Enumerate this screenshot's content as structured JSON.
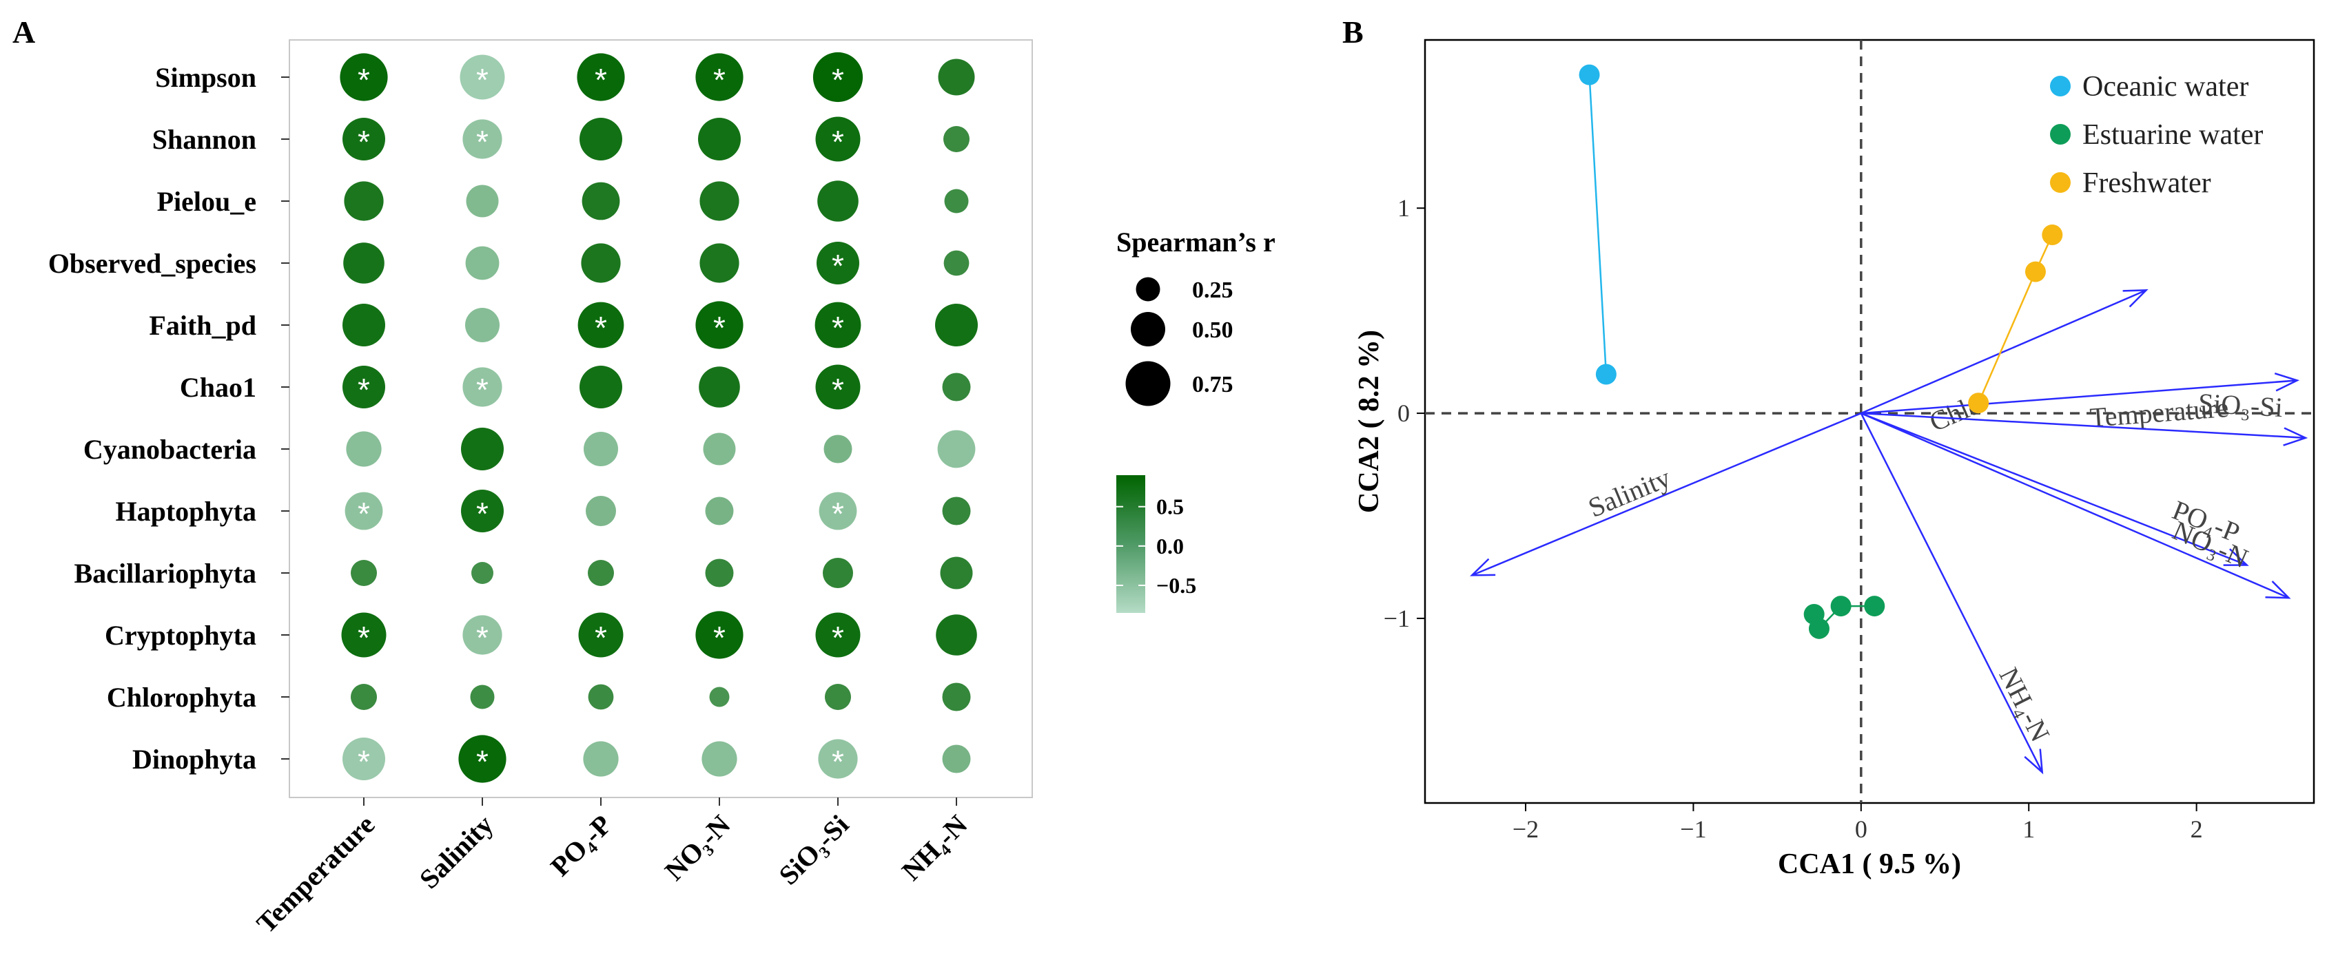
{
  "chart_data": [
    {
      "type": "heatmap",
      "panel_label": "A",
      "rows": [
        "Simpson",
        "Shannon",
        "Pielou_e",
        "Observed_species",
        "Faith_pd",
        "Chao1",
        "Cyanobacteria",
        "Haptophyta",
        "Bacillariophyta",
        "Cryptophyta",
        "Chlorophyta",
        "Dinophyta"
      ],
      "columns": [
        "Temperature",
        "Salinity",
        "PO₄-P",
        "NO₃-N",
        "SiO₃-Si",
        "NH₄-N"
      ],
      "r": [
        [
          0.82,
          -0.75,
          0.82,
          0.82,
          0.87,
          0.55
        ],
        [
          0.7,
          -0.62,
          0.7,
          0.7,
          0.75,
          0.3
        ],
        [
          0.62,
          -0.45,
          0.58,
          0.62,
          0.66,
          0.25
        ],
        [
          0.66,
          -0.48,
          0.62,
          0.62,
          0.7,
          0.28
        ],
        [
          0.7,
          -0.5,
          0.78,
          0.82,
          0.78,
          0.7
        ],
        [
          0.7,
          -0.62,
          0.7,
          0.66,
          0.75,
          0.35
        ],
        [
          -0.52,
          0.7,
          -0.5,
          -0.45,
          -0.35,
          -0.58
        ],
        [
          -0.58,
          0.7,
          -0.4,
          -0.35,
          -0.58,
          0.35
        ],
        [
          0.3,
          0.2,
          0.3,
          0.35,
          0.4,
          0.45
        ],
        [
          0.75,
          -0.62,
          0.75,
          0.82,
          0.75,
          0.66
        ],
        [
          0.3,
          0.25,
          0.28,
          0.15,
          0.3,
          0.35
        ],
        [
          -0.7,
          0.82,
          -0.52,
          -0.52,
          -0.62,
          -0.35
        ]
      ],
      "significant": [
        [
          true,
          true,
          true,
          true,
          true,
          false
        ],
        [
          true,
          true,
          false,
          false,
          true,
          false
        ],
        [
          false,
          false,
          false,
          false,
          false,
          false
        ],
        [
          false,
          false,
          false,
          false,
          true,
          false
        ],
        [
          false,
          false,
          true,
          true,
          true,
          false
        ],
        [
          true,
          true,
          false,
          false,
          true,
          false
        ],
        [
          false,
          false,
          false,
          false,
          false,
          false
        ],
        [
          true,
          true,
          false,
          false,
          true,
          false
        ],
        [
          false,
          false,
          false,
          false,
          false,
          false
        ],
        [
          true,
          true,
          true,
          true,
          true,
          false
        ],
        [
          false,
          false,
          false,
          false,
          false,
          false
        ],
        [
          true,
          true,
          false,
          false,
          true,
          false
        ]
      ],
      "star_symbol": "*",
      "size_legend": {
        "title": "Spearman’s r",
        "values": [
          0.25,
          0.5,
          0.75
        ],
        "labels": [
          "0.25",
          "0.50",
          "0.75"
        ]
      },
      "color_legend": {
        "range": [
          -0.85,
          0.9
        ],
        "ticks": [
          0.5,
          0.0,
          -0.5
        ],
        "labels": [
          "0.5",
          "0.0",
          "−0.5"
        ],
        "low_color": "#a8d3bb",
        "high_color": "#006400"
      }
    },
    {
      "type": "scatter",
      "panel_label": "B",
      "xlabel": "CCA1 ( 9.5 %)",
      "ylabel": "CCA2 ( 8.2 %)",
      "xlim": [
        -2.6,
        2.7
      ],
      "ylim": [
        -1.9,
        1.82
      ],
      "xticks": [
        -2,
        -1,
        0,
        1,
        2
      ],
      "xtick_labels": [
        "−2",
        "−1",
        "0",
        "1",
        "2"
      ],
      "yticks": [
        -1,
        0,
        1
      ],
      "ytick_labels": [
        "−1",
        "0",
        "1"
      ],
      "series": [
        {
          "name": "Oceanic water",
          "color": "#22b6ec",
          "points": [
            [
              -1.62,
              1.65
            ],
            [
              -1.52,
              0.19
            ]
          ]
        },
        {
          "name": "Estuarine water",
          "color": "#0e9d58",
          "points": [
            [
              -0.28,
              -0.98
            ],
            [
              -0.25,
              -1.05
            ],
            [
              -0.12,
              -0.94
            ],
            [
              0.08,
              -0.94
            ]
          ]
        },
        {
          "name": "Freshwater",
          "color": "#f7b814",
          "points": [
            [
              1.14,
              0.87
            ],
            [
              1.04,
              0.69
            ],
            [
              0.7,
              0.05
            ]
          ]
        }
      ],
      "vectors": [
        {
          "label": "Chla",
          "label_main": "Chl",
          "label_italic": "a",
          "x": 1.7,
          "y": 0.6
        },
        {
          "label": "Temperature",
          "x": 2.6,
          "y": 0.16
        },
        {
          "label": "SiO₃-Si",
          "x": 2.65,
          "y": -0.12
        },
        {
          "label": "PO₄-P",
          "x": 2.3,
          "y": -0.74
        },
        {
          "label": "NO₃-N",
          "x": 2.55,
          "y": -0.9
        },
        {
          "label": "NH₄-N",
          "x": 1.08,
          "y": -1.75
        },
        {
          "label": "Salinity",
          "x": -2.32,
          "y": -0.79
        }
      ],
      "vector_color": "#2a2aff"
    }
  ]
}
